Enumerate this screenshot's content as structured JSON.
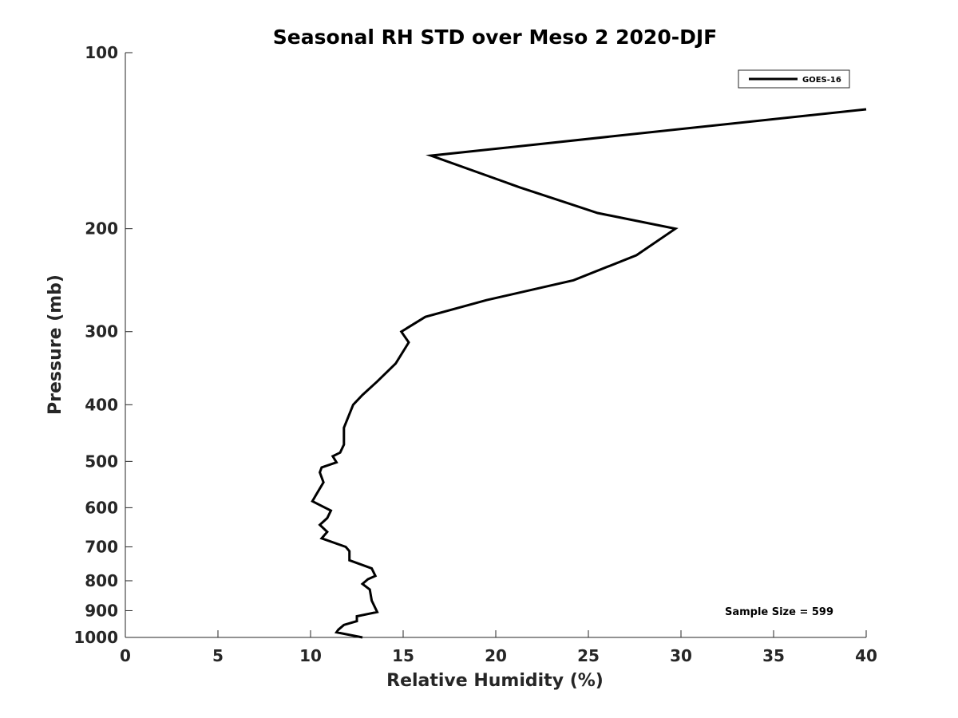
{
  "chart_data": {
    "type": "line",
    "title": "Seasonal RH STD over Meso 2  2020-DJF",
    "xlabel": "Relative Humidity (%)",
    "ylabel": "Pressure (mb)",
    "xlim": [
      0,
      40
    ],
    "ylim": [
      100,
      1000
    ],
    "yscale": "log",
    "y_reversed": true,
    "grid": false,
    "legend_position": "top-right",
    "x_ticks": [
      0,
      5,
      10,
      15,
      20,
      25,
      30,
      35,
      40
    ],
    "y_ticks": [
      100,
      200,
      300,
      400,
      500,
      600,
      700,
      800,
      900,
      1000
    ],
    "annotation": "Sample Size = 599",
    "series": [
      {
        "name": "GOES-16",
        "color": "#000000",
        "points": [
          [
            40.0,
            125
          ],
          [
            16.5,
            150
          ],
          [
            21.3,
            170
          ],
          [
            25.5,
            188
          ],
          [
            29.7,
            200
          ],
          [
            27.6,
            222
          ],
          [
            24.2,
            245
          ],
          [
            19.5,
            265
          ],
          [
            16.2,
            283
          ],
          [
            14.9,
            300
          ],
          [
            15.3,
            313
          ],
          [
            14.6,
            340
          ],
          [
            13.6,
            365
          ],
          [
            12.8,
            385
          ],
          [
            12.3,
            400
          ],
          [
            11.8,
            438
          ],
          [
            11.8,
            468
          ],
          [
            11.6,
            483
          ],
          [
            11.2,
            490
          ],
          [
            11.4,
            502
          ],
          [
            10.6,
            512
          ],
          [
            10.5,
            522
          ],
          [
            10.7,
            543
          ],
          [
            10.3,
            570
          ],
          [
            10.1,
            585
          ],
          [
            11.1,
            607
          ],
          [
            10.9,
            625
          ],
          [
            10.5,
            642
          ],
          [
            10.9,
            660
          ],
          [
            10.6,
            677
          ],
          [
            11.9,
            700
          ],
          [
            12.1,
            712
          ],
          [
            12.1,
            738
          ],
          [
            13.3,
            762
          ],
          [
            13.5,
            785
          ],
          [
            13.1,
            795
          ],
          [
            12.8,
            810
          ],
          [
            13.2,
            828
          ],
          [
            13.3,
            865
          ],
          [
            13.6,
            905
          ],
          [
            12.5,
            920
          ],
          [
            12.5,
            938
          ],
          [
            11.8,
            952
          ],
          [
            11.5,
            970
          ],
          [
            11.4,
            980
          ],
          [
            12.8,
            1000
          ]
        ]
      }
    ]
  }
}
